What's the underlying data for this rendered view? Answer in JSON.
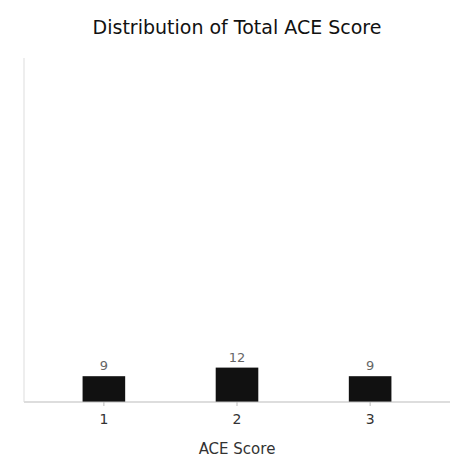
{
  "chart_data": {
    "type": "bar",
    "title": "Distribution of Total ACE Score",
    "x": [
      1,
      2,
      3
    ],
    "values": [
      9,
      12,
      9
    ],
    "color": "#111111",
    "xlabel": "ACE Score",
    "xlim": [
      0.4,
      3.6
    ],
    "xticks": [
      1,
      2,
      3
    ],
    "ylim": [
      0,
      120
    ],
    "grid": false,
    "data_labels": true,
    "tick_labels": "x"
  }
}
